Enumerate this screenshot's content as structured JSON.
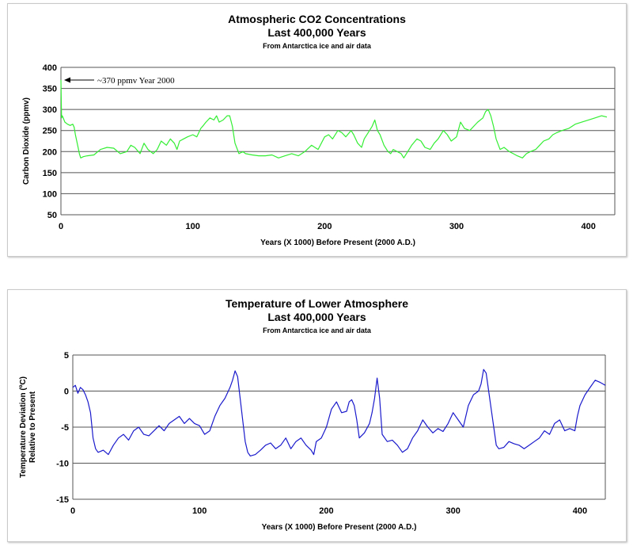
{
  "chart_data": [
    {
      "type": "line",
      "title": "Atmospheric CO2 Concentrations",
      "subtitle": "Last 400,000 Years",
      "source": "From Antarctica ice and air data",
      "xlabel": "Years (X 1000) Before Present (2000 A.D.)",
      "ylabel": "Carbon Dioxide (ppmv)",
      "xlim": [
        0,
        420
      ],
      "ylim": [
        50,
        400
      ],
      "xticks": [
        0,
        100,
        200,
        300,
        400
      ],
      "yticks": [
        50,
        100,
        150,
        200,
        250,
        300,
        350,
        400
      ],
      "grid": "horizontal",
      "line_color": "#33ee33",
      "annotation": {
        "text": "~370 ppmv Year 2000",
        "x": 0,
        "y": 370
      },
      "series": [
        {
          "x": [
            0,
            0.5,
            1,
            2,
            3,
            5,
            7,
            9,
            10,
            11,
            12,
            13,
            14,
            15,
            17,
            20,
            25,
            30,
            35,
            40,
            45,
            50,
            53,
            56,
            60,
            63,
            66,
            70,
            73,
            76,
            80,
            83,
            86,
            88,
            90,
            93,
            96,
            100,
            103,
            106,
            108,
            110,
            113,
            116,
            118,
            120,
            123,
            126,
            128,
            130,
            132,
            135,
            138,
            140,
            145,
            150,
            155,
            160,
            165,
            170,
            175,
            180,
            185,
            190,
            195,
            200,
            203,
            206,
            210,
            213,
            216,
            220,
            222,
            225,
            228,
            230,
            233,
            236,
            238,
            240,
            242,
            245,
            248,
            250,
            252,
            255,
            258,
            260,
            263,
            266,
            270,
            273,
            276,
            280,
            283,
            286,
            290,
            293,
            296,
            300,
            303,
            306,
            310,
            313,
            316,
            320,
            322,
            324,
            326,
            328,
            330,
            333,
            336,
            340,
            343,
            346,
            350,
            353,
            356,
            360,
            363,
            366,
            370,
            373,
            376,
            380,
            385,
            390,
            395,
            400,
            405,
            410,
            414
          ],
          "y": [
            370,
            280,
            285,
            278,
            270,
            265,
            262,
            265,
            258,
            240,
            225,
            210,
            195,
            185,
            188,
            190,
            192,
            205,
            210,
            208,
            195,
            200,
            215,
            210,
            195,
            220,
            205,
            195,
            205,
            225,
            215,
            230,
            220,
            205,
            225,
            230,
            235,
            240,
            235,
            255,
            262,
            270,
            280,
            275,
            285,
            270,
            275,
            285,
            285,
            260,
            220,
            195,
            200,
            195,
            192,
            190,
            190,
            192,
            185,
            190,
            195,
            190,
            200,
            215,
            205,
            235,
            240,
            230,
            250,
            245,
            235,
            250,
            240,
            220,
            210,
            230,
            245,
            260,
            275,
            250,
            240,
            215,
            200,
            195,
            205,
            200,
            195,
            185,
            200,
            215,
            230,
            225,
            210,
            205,
            220,
            230,
            250,
            240,
            225,
            235,
            270,
            255,
            250,
            260,
            270,
            280,
            295,
            300,
            285,
            260,
            230,
            205,
            210,
            200,
            195,
            190,
            185,
            195,
            200,
            205,
            215,
            225,
            230,
            240,
            245,
            250,
            255,
            265,
            270,
            275,
            280,
            285,
            282
          ]
        }
      ]
    },
    {
      "type": "line",
      "title": "Temperature of Lower Atmosphere",
      "subtitle": "Last 400,000 Years",
      "source": "From Antarctica ice and air data",
      "xlabel": "Years (X 1000) Before Present (2000 A.D.)",
      "ylabel": "Temperature Deviation (ºC)",
      "ylabel2": "Relative to Present",
      "xlim": [
        0,
        420
      ],
      "ylim": [
        -15,
        5
      ],
      "xticks": [
        0,
        100,
        200,
        300,
        400
      ],
      "yticks": [
        -15,
        -10,
        -5,
        0,
        5
      ],
      "grid": "horizontal",
      "line_color": "#1a1acc",
      "series": [
        {
          "x": [
            0,
            2,
            4,
            6,
            8,
            10,
            12,
            14,
            16,
            18,
            20,
            24,
            28,
            32,
            36,
            40,
            44,
            48,
            52,
            56,
            60,
            64,
            68,
            72,
            76,
            80,
            84,
            88,
            92,
            96,
            100,
            104,
            108,
            112,
            116,
            120,
            124,
            126,
            128,
            130,
            132,
            134,
            136,
            138,
            140,
            144,
            148,
            152,
            156,
            160,
            164,
            168,
            172,
            176,
            180,
            184,
            188,
            190,
            192,
            196,
            200,
            204,
            208,
            212,
            216,
            218,
            220,
            222,
            224,
            226,
            230,
            234,
            236,
            238,
            240,
            242,
            244,
            248,
            252,
            256,
            260,
            264,
            268,
            272,
            276,
            280,
            284,
            288,
            292,
            296,
            300,
            304,
            308,
            312,
            316,
            320,
            322,
            324,
            326,
            328,
            330,
            332,
            334,
            336,
            340,
            344,
            348,
            352,
            356,
            360,
            364,
            368,
            372,
            376,
            380,
            384,
            388,
            392,
            396,
            398,
            400,
            404,
            408,
            412,
            416,
            420
          ],
          "y": [
            0.5,
            0.8,
            -0.3,
            0.5,
            0.2,
            -0.5,
            -1.5,
            -3,
            -6.5,
            -8,
            -8.5,
            -8.2,
            -8.8,
            -7.5,
            -6.5,
            -6,
            -6.8,
            -5.5,
            -5,
            -6,
            -6.2,
            -5.5,
            -4.8,
            -5.5,
            -4.5,
            -4,
            -3.5,
            -4.5,
            -3.8,
            -4.5,
            -4.8,
            -6,
            -5.5,
            -3.5,
            -2,
            -1,
            0.5,
            1.5,
            2.8,
            2,
            -1,
            -4,
            -7,
            -8.5,
            -9,
            -8.8,
            -8.2,
            -7.5,
            -7.2,
            -8,
            -7.5,
            -6.5,
            -8,
            -7,
            -6.5,
            -7.5,
            -8.2,
            -8.8,
            -7,
            -6.5,
            -5,
            -2.5,
            -1.5,
            -3,
            -2.8,
            -1.5,
            -1.2,
            -2,
            -4,
            -6.5,
            -5.8,
            -4.5,
            -3,
            -1,
            1.8,
            -1,
            -6,
            -7,
            -6.8,
            -7.5,
            -8.5,
            -8,
            -6.5,
            -5.5,
            -4,
            -5,
            -5.8,
            -5.2,
            -5.6,
            -4.5,
            -3,
            -4,
            -5,
            -2,
            -0.5,
            0,
            1,
            3,
            2.5,
            0,
            -2.5,
            -5,
            -7.5,
            -8,
            -7.8,
            -7,
            -7.3,
            -7.5,
            -8,
            -7.5,
            -7,
            -6.5,
            -5.5,
            -6,
            -4.5,
            -4,
            -5.5,
            -5.2,
            -5.5,
            -3.5,
            -2,
            -0.5,
            0.5,
            1.5,
            1.2,
            0.8
          ]
        }
      ]
    }
  ]
}
